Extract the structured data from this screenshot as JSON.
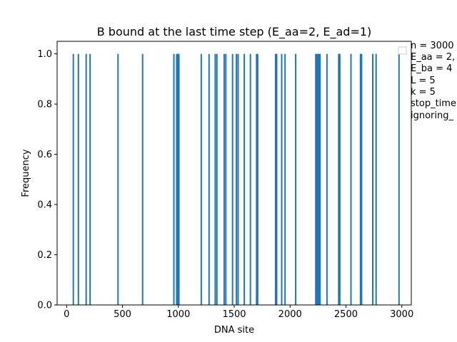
{
  "chart_data": {
    "type": "bar",
    "title": "B bound at the last time step (E_aa=2, E_ad=1)",
    "xlabel": "DNA site",
    "ylabel": "Frequency",
    "xlim": [
      -85,
      3085
    ],
    "ylim": [
      0,
      1.05
    ],
    "x_ticks": [
      0,
      500,
      1000,
      1500,
      2000,
      2500,
      3000
    ],
    "y_ticks": [
      0.0,
      0.2,
      0.4,
      0.6,
      0.8,
      1.0
    ],
    "x_tick_labels": [
      "0",
      "500",
      "1000",
      "1500",
      "2000",
      "2500",
      "3000"
    ],
    "y_tick_labels": [
      "0.0",
      "0.2",
      "0.4",
      "0.6",
      "0.8",
      "1.0"
    ],
    "x": [
      60,
      105,
      175,
      210,
      460,
      680,
      960,
      985,
      995,
      1005,
      1205,
      1275,
      1330,
      1345,
      1410,
      1425,
      1485,
      1520,
      1535,
      1590,
      1645,
      1700,
      1710,
      1870,
      1880,
      1925,
      1955,
      2050,
      2230,
      2240,
      2250,
      2258,
      2268,
      2330,
      2435,
      2445,
      2545,
      2630,
      2640,
      2740,
      2770,
      2975
    ],
    "values": [
      1,
      1,
      1,
      1,
      1,
      1,
      1,
      1,
      1,
      1,
      1,
      1,
      1,
      1,
      1,
      1,
      1,
      1,
      1,
      1,
      1,
      1,
      1,
      1,
      1,
      1,
      1,
      1,
      1,
      1,
      1,
      1,
      1,
      1,
      1,
      1,
      1,
      1,
      1,
      1,
      1,
      1
    ],
    "bar_color": "#1f77b4",
    "grid": false,
    "legend_placement": "upper-right-outside",
    "legend_entries": [
      "n = 3000",
      "E_aa = 2,",
      "E_ba = 4",
      "L = 5",
      "k = 5",
      "stop_time",
      "ignoring_"
    ]
  }
}
